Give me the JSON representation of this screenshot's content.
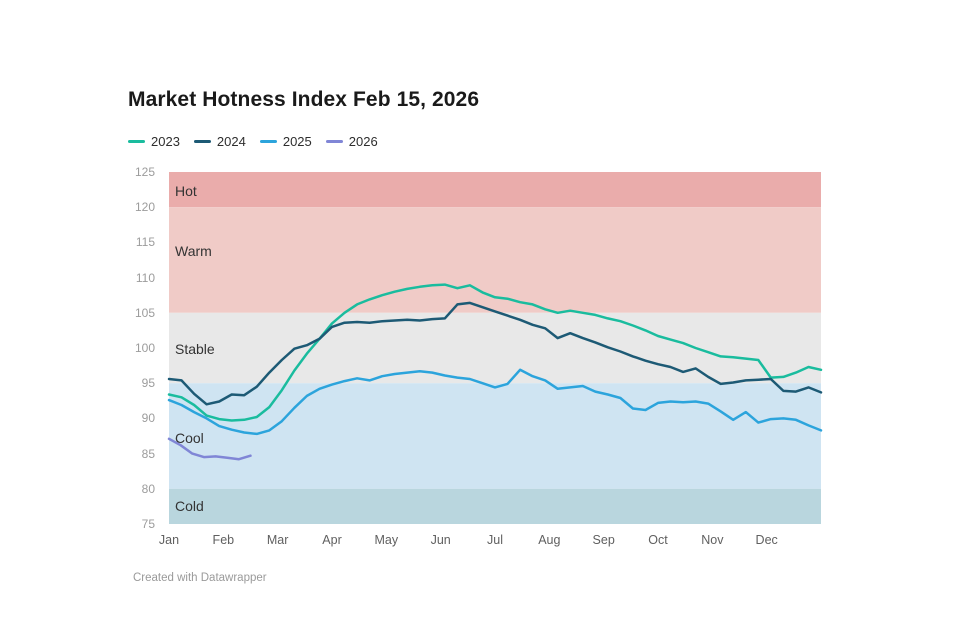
{
  "page": {
    "background": "#ffffff",
    "footer": "Created with Datawrapper"
  },
  "chart_data": {
    "type": "line",
    "title": "Market Hotness Index Feb 15, 2026",
    "legend_position": "top",
    "grid": false,
    "x_axis": {
      "unit": "month",
      "labels": [
        "Jan",
        "Feb",
        "Mar",
        "Apr",
        "May",
        "Jun",
        "Jul",
        "Aug",
        "Sep",
        "Oct",
        "Nov",
        "Dec"
      ],
      "range_months": [
        0,
        12
      ]
    },
    "y_axis": {
      "min": 75,
      "max": 125,
      "tick_step": 5,
      "ticks": [
        125,
        120,
        115,
        110,
        105,
        100,
        95,
        90,
        85,
        80,
        75
      ]
    },
    "bands": [
      {
        "label": "Hot",
        "from": 120,
        "to": 125,
        "color": "#eaacab"
      },
      {
        "label": "Warm",
        "from": 105,
        "to": 120,
        "color": "#f0cbc7"
      },
      {
        "label": "Stable",
        "from": 95,
        "to": 105,
        "color": "#e8e8e8"
      },
      {
        "label": "Cool",
        "from": 80,
        "to": 95,
        "color": "#cfe4f2"
      },
      {
        "label": "Cold",
        "from": 75,
        "to": 80,
        "color": "#b9d6de"
      }
    ],
    "series": [
      {
        "name": "2023",
        "color": "#1abc9e",
        "x_start_month": 0,
        "x_end_month": 12,
        "values": [
          93.4,
          93.0,
          91.9,
          90.4,
          89.9,
          89.7,
          89.8,
          90.2,
          91.6,
          94.0,
          96.8,
          99.2,
          101.3,
          103.5,
          105.0,
          106.2,
          106.9,
          107.5,
          108.0,
          108.4,
          108.7,
          108.9,
          109.0,
          108.5,
          108.9,
          107.9,
          107.2,
          107.0,
          106.5,
          106.2,
          105.5,
          105.0,
          105.3,
          105.0,
          104.7,
          104.2,
          103.8,
          103.2,
          102.5,
          101.7,
          101.2,
          100.7,
          100.0,
          99.4,
          98.8,
          98.7,
          98.5,
          98.3,
          95.8,
          95.9,
          96.5,
          97.3,
          96.9
        ]
      },
      {
        "name": "2024",
        "color": "#1d5a75",
        "x_start_month": 0,
        "x_end_month": 12,
        "values": [
          95.6,
          95.4,
          93.5,
          92.0,
          92.4,
          93.4,
          93.3,
          94.5,
          96.5,
          98.3,
          99.9,
          100.4,
          101.3,
          103.0,
          103.6,
          103.7,
          103.6,
          103.8,
          103.9,
          104.0,
          103.9,
          104.1,
          104.2,
          106.2,
          106.4,
          105.8,
          105.2,
          104.6,
          104.0,
          103.3,
          102.8,
          101.4,
          102.1,
          101.4,
          100.8,
          100.1,
          99.5,
          98.8,
          98.2,
          97.7,
          97.3,
          96.6,
          97.1,
          95.9,
          94.9,
          95.1,
          95.4,
          95.5,
          95.6,
          93.9,
          93.8,
          94.4,
          93.7
        ]
      },
      {
        "name": "2025",
        "color": "#2ca4dc",
        "x_start_month": 0,
        "x_end_month": 12,
        "values": [
          92.6,
          91.9,
          90.9,
          90.0,
          88.9,
          88.4,
          88.0,
          87.8,
          88.3,
          89.6,
          91.5,
          93.2,
          94.2,
          94.8,
          95.3,
          95.7,
          95.4,
          96.0,
          96.3,
          96.5,
          96.7,
          96.5,
          96.1,
          95.8,
          95.6,
          95.0,
          94.4,
          94.9,
          96.9,
          96.0,
          95.4,
          94.2,
          94.4,
          94.6,
          93.8,
          93.4,
          92.9,
          91.4,
          91.2,
          92.2,
          92.4,
          92.3,
          92.4,
          92.1,
          91.0,
          89.8,
          90.9,
          89.4,
          89.9,
          90.0,
          89.8,
          89.0,
          88.3
        ]
      },
      {
        "name": "2026",
        "color": "#8086d6",
        "x_start_month": 0,
        "x_end_month": 1.5,
        "values": [
          87.1,
          86.2,
          85.0,
          84.5,
          84.6,
          84.4,
          84.2,
          84.7
        ]
      }
    ]
  }
}
